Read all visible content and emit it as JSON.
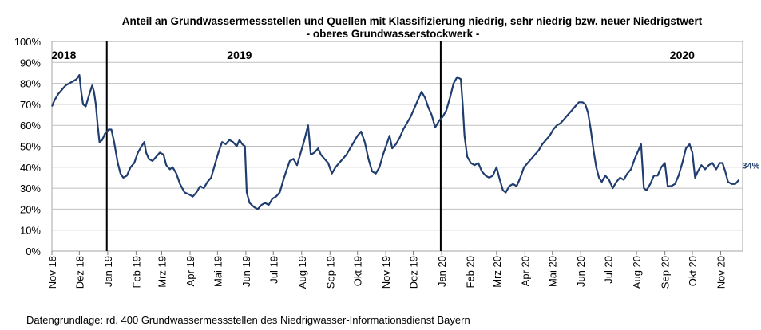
{
  "chart_data": {
    "type": "line",
    "title": "Anteil an Grundwassermessstellen und Quellen mit Klassifizierung niedrig, sehr niedrig bzw. neuer Niedrigstwert",
    "subtitle": "- oberes Grundwasserstockwerk -",
    "ylim": [
      0,
      100
    ],
    "y_ticks": [
      "0%",
      "10%",
      "20%",
      "30%",
      "40%",
      "50%",
      "60%",
      "70%",
      "80%",
      "90%",
      "100%"
    ],
    "x_ticks": [
      {
        "label": "Nov 18",
        "date": "2018-11-01"
      },
      {
        "label": "Dez 18",
        "date": "2018-12-01"
      },
      {
        "label": "Jan 19",
        "date": "2019-01-01"
      },
      {
        "label": "Feb 19",
        "date": "2019-02-01"
      },
      {
        "label": "Mrz 19",
        "date": "2019-03-01"
      },
      {
        "label": "Apr 19",
        "date": "2019-04-01"
      },
      {
        "label": "Mai 19",
        "date": "2019-05-01"
      },
      {
        "label": "Jun 19",
        "date": "2019-06-01"
      },
      {
        "label": "Jul 19",
        "date": "2019-07-01"
      },
      {
        "label": "Aug 19",
        "date": "2019-08-01"
      },
      {
        "label": "Sep 19",
        "date": "2019-09-01"
      },
      {
        "label": "Okt 19",
        "date": "2019-10-01"
      },
      {
        "label": "Nov 19",
        "date": "2019-11-01"
      },
      {
        "label": "Dez 19",
        "date": "2019-12-01"
      },
      {
        "label": "Jan 20",
        "date": "2020-01-01"
      },
      {
        "label": "Feb 20",
        "date": "2020-02-01"
      },
      {
        "label": "Mrz 20",
        "date": "2020-03-01"
      },
      {
        "label": "Apr 20",
        "date": "2020-04-01"
      },
      {
        "label": "Mai 20",
        "date": "2020-05-01"
      },
      {
        "label": "Jun 20",
        "date": "2020-06-01"
      },
      {
        "label": "Jul 20",
        "date": "2020-07-01"
      },
      {
        "label": "Aug 20",
        "date": "2020-08-01"
      },
      {
        "label": "Sep 20",
        "date": "2020-09-01"
      },
      {
        "label": "Okt 20",
        "date": "2020-10-01"
      },
      {
        "label": "Nov 20",
        "date": "2020-11-01"
      }
    ],
    "x_range": [
      "2018-11-01",
      "2020-11-25"
    ],
    "year_markers": [
      {
        "label": "2018",
        "date": "2018-11-14",
        "line": false
      },
      {
        "label": "2019",
        "date": "2019-05-25",
        "line": false
      },
      {
        "label": "2020",
        "date": "2020-09-20",
        "line": false
      },
      {
        "date": "2018-12-31",
        "line": true
      },
      {
        "date": "2019-12-31",
        "line": true
      }
    ],
    "grid": true,
    "end_label": "34%",
    "series": [
      {
        "color": "#1f3d6e",
        "points": [
          [
            "2018-11-01",
            69
          ],
          [
            "2018-11-04",
            72
          ],
          [
            "2018-11-08",
            75
          ],
          [
            "2018-11-12",
            77
          ],
          [
            "2018-11-16",
            79
          ],
          [
            "2018-11-20",
            80
          ],
          [
            "2018-11-24",
            81
          ],
          [
            "2018-11-28",
            82
          ],
          [
            "2018-12-01",
            84
          ],
          [
            "2018-12-03",
            76
          ],
          [
            "2018-12-05",
            70
          ],
          [
            "2018-12-08",
            69
          ],
          [
            "2018-12-12",
            75
          ],
          [
            "2018-12-15",
            79
          ],
          [
            "2018-12-17",
            76
          ],
          [
            "2018-12-19",
            70
          ],
          [
            "2018-12-21",
            60
          ],
          [
            "2018-12-23",
            52
          ],
          [
            "2018-12-26",
            53
          ],
          [
            "2018-12-29",
            56
          ],
          [
            "2019-01-02",
            58
          ],
          [
            "2019-01-05",
            58
          ],
          [
            "2019-01-08",
            52
          ],
          [
            "2019-01-12",
            42
          ],
          [
            "2019-01-15",
            37
          ],
          [
            "2019-01-18",
            35
          ],
          [
            "2019-01-22",
            36
          ],
          [
            "2019-01-26",
            40
          ],
          [
            "2019-01-30",
            42
          ],
          [
            "2019-02-03",
            47
          ],
          [
            "2019-02-07",
            50
          ],
          [
            "2019-02-10",
            52
          ],
          [
            "2019-02-12",
            47
          ],
          [
            "2019-02-15",
            44
          ],
          [
            "2019-02-19",
            43
          ],
          [
            "2019-02-23",
            45
          ],
          [
            "2019-02-27",
            47
          ],
          [
            "2019-03-03",
            46
          ],
          [
            "2019-03-06",
            41
          ],
          [
            "2019-03-10",
            39
          ],
          [
            "2019-03-13",
            40
          ],
          [
            "2019-03-17",
            37
          ],
          [
            "2019-03-21",
            32
          ],
          [
            "2019-03-26",
            28
          ],
          [
            "2019-03-31",
            27
          ],
          [
            "2019-04-04",
            26
          ],
          [
            "2019-04-08",
            28
          ],
          [
            "2019-04-12",
            31
          ],
          [
            "2019-04-16",
            30
          ],
          [
            "2019-04-20",
            33
          ],
          [
            "2019-04-24",
            35
          ],
          [
            "2019-04-28",
            41
          ],
          [
            "2019-05-02",
            47
          ],
          [
            "2019-05-06",
            52
          ],
          [
            "2019-05-10",
            51
          ],
          [
            "2019-05-14",
            53
          ],
          [
            "2019-05-18",
            52
          ],
          [
            "2019-05-22",
            50
          ],
          [
            "2019-05-25",
            53
          ],
          [
            "2019-05-28",
            51
          ],
          [
            "2019-05-31",
            50
          ],
          [
            "2019-06-02",
            28
          ],
          [
            "2019-06-05",
            23
          ],
          [
            "2019-06-10",
            21
          ],
          [
            "2019-06-14",
            20
          ],
          [
            "2019-06-18",
            22
          ],
          [
            "2019-06-22",
            23
          ],
          [
            "2019-06-26",
            22
          ],
          [
            "2019-06-30",
            25
          ],
          [
            "2019-07-04",
            26
          ],
          [
            "2019-07-08",
            28
          ],
          [
            "2019-07-12",
            34
          ],
          [
            "2019-07-15",
            38
          ],
          [
            "2019-07-19",
            43
          ],
          [
            "2019-07-23",
            44
          ],
          [
            "2019-07-27",
            41
          ],
          [
            "2019-07-31",
            47
          ],
          [
            "2019-08-04",
            53
          ],
          [
            "2019-08-08",
            60
          ],
          [
            "2019-08-11",
            46
          ],
          [
            "2019-08-15",
            47
          ],
          [
            "2019-08-19",
            49
          ],
          [
            "2019-08-22",
            46
          ],
          [
            "2019-08-26",
            44
          ],
          [
            "2019-08-30",
            42
          ],
          [
            "2019-09-03",
            37
          ],
          [
            "2019-09-07",
            40
          ],
          [
            "2019-09-11",
            42
          ],
          [
            "2019-09-15",
            44
          ],
          [
            "2019-09-19",
            46
          ],
          [
            "2019-09-23",
            49
          ],
          [
            "2019-09-27",
            52
          ],
          [
            "2019-10-01",
            55
          ],
          [
            "2019-10-05",
            57
          ],
          [
            "2019-10-09",
            52
          ],
          [
            "2019-10-13",
            44
          ],
          [
            "2019-10-17",
            38
          ],
          [
            "2019-10-21",
            37
          ],
          [
            "2019-10-25",
            40
          ],
          [
            "2019-10-29",
            46
          ],
          [
            "2019-11-02",
            51
          ],
          [
            "2019-11-05",
            55
          ],
          [
            "2019-11-08",
            49
          ],
          [
            "2019-11-12",
            51
          ],
          [
            "2019-11-16",
            54
          ],
          [
            "2019-11-20",
            58
          ],
          [
            "2019-11-24",
            61
          ],
          [
            "2019-11-28",
            64
          ],
          [
            "2019-12-02",
            68
          ],
          [
            "2019-12-06",
            72
          ],
          [
            "2019-12-10",
            76
          ],
          [
            "2019-12-14",
            73
          ],
          [
            "2019-12-17",
            69
          ],
          [
            "2019-12-21",
            65
          ],
          [
            "2019-12-25",
            59
          ],
          [
            "2019-12-29",
            62
          ],
          [
            "2020-01-02",
            64
          ],
          [
            "2020-01-06",
            67
          ],
          [
            "2020-01-10",
            73
          ],
          [
            "2020-01-14",
            80
          ],
          [
            "2020-01-18",
            83
          ],
          [
            "2020-01-22",
            82
          ],
          [
            "2020-01-24",
            70
          ],
          [
            "2020-01-26",
            55
          ],
          [
            "2020-01-29",
            45
          ],
          [
            "2020-02-02",
            42
          ],
          [
            "2020-02-06",
            41
          ],
          [
            "2020-02-10",
            42
          ],
          [
            "2020-02-14",
            38
          ],
          [
            "2020-02-18",
            36
          ],
          [
            "2020-02-22",
            35
          ],
          [
            "2020-02-26",
            36
          ],
          [
            "2020-03-01",
            40
          ],
          [
            "2020-03-04",
            35
          ],
          [
            "2020-03-08",
            29
          ],
          [
            "2020-03-11",
            28
          ],
          [
            "2020-03-15",
            31
          ],
          [
            "2020-03-19",
            32
          ],
          [
            "2020-03-23",
            31
          ],
          [
            "2020-03-27",
            35
          ],
          [
            "2020-03-31",
            40
          ],
          [
            "2020-04-04",
            42
          ],
          [
            "2020-04-08",
            44
          ],
          [
            "2020-04-12",
            46
          ],
          [
            "2020-04-16",
            48
          ],
          [
            "2020-04-20",
            51
          ],
          [
            "2020-04-24",
            53
          ],
          [
            "2020-04-28",
            55
          ],
          [
            "2020-05-02",
            58
          ],
          [
            "2020-05-06",
            60
          ],
          [
            "2020-05-10",
            61
          ],
          [
            "2020-05-14",
            63
          ],
          [
            "2020-05-18",
            65
          ],
          [
            "2020-05-22",
            67
          ],
          [
            "2020-05-26",
            69
          ],
          [
            "2020-05-30",
            71
          ],
          [
            "2020-06-03",
            71
          ],
          [
            "2020-06-06",
            70
          ],
          [
            "2020-06-09",
            66
          ],
          [
            "2020-06-12",
            58
          ],
          [
            "2020-06-15",
            48
          ],
          [
            "2020-06-18",
            40
          ],
          [
            "2020-06-21",
            35
          ],
          [
            "2020-06-24",
            33
          ],
          [
            "2020-06-28",
            36
          ],
          [
            "2020-07-02",
            34
          ],
          [
            "2020-07-06",
            30
          ],
          [
            "2020-07-10",
            33
          ],
          [
            "2020-07-14",
            35
          ],
          [
            "2020-07-18",
            34
          ],
          [
            "2020-07-22",
            37
          ],
          [
            "2020-07-26",
            39
          ],
          [
            "2020-07-30",
            44
          ],
          [
            "2020-08-03",
            48
          ],
          [
            "2020-08-06",
            51
          ],
          [
            "2020-08-09",
            30
          ],
          [
            "2020-08-12",
            29
          ],
          [
            "2020-08-16",
            32
          ],
          [
            "2020-08-20",
            36
          ],
          [
            "2020-08-24",
            36
          ],
          [
            "2020-08-28",
            40
          ],
          [
            "2020-09-01",
            42
          ],
          [
            "2020-09-04",
            31
          ],
          [
            "2020-09-08",
            31
          ],
          [
            "2020-09-12",
            32
          ],
          [
            "2020-09-16",
            36
          ],
          [
            "2020-09-20",
            42
          ],
          [
            "2020-09-24",
            49
          ],
          [
            "2020-09-28",
            51
          ],
          [
            "2020-10-01",
            47
          ],
          [
            "2020-10-04",
            35
          ],
          [
            "2020-10-07",
            38
          ],
          [
            "2020-10-11",
            41
          ],
          [
            "2020-10-15",
            39
          ],
          [
            "2020-10-19",
            41
          ],
          [
            "2020-10-23",
            42
          ],
          [
            "2020-10-27",
            39
          ],
          [
            "2020-10-31",
            42
          ],
          [
            "2020-11-03",
            42
          ],
          [
            "2020-11-06",
            38
          ],
          [
            "2020-11-09",
            33
          ],
          [
            "2020-11-13",
            32
          ],
          [
            "2020-11-17",
            32
          ],
          [
            "2020-11-21",
            34
          ]
        ]
      }
    ]
  },
  "footer": {
    "source": "Datengrundlage:  rd. 400 Grundwassermessstellen  des Niedrigwasser-Informationsdienst  Bayern"
  }
}
